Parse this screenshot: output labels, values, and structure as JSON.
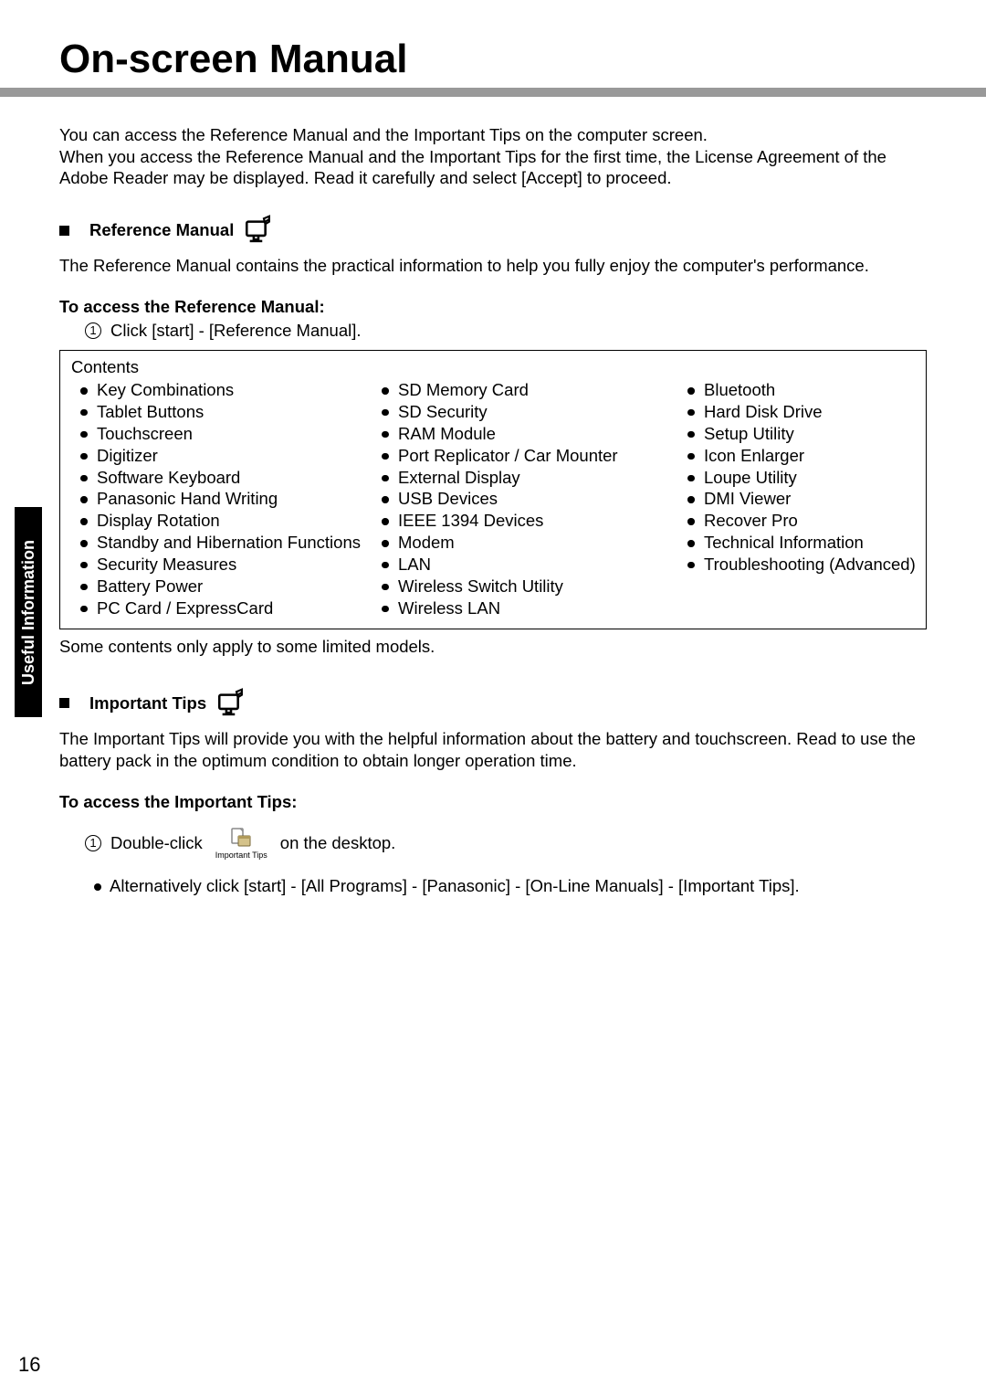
{
  "page": {
    "title": "On-screen Manual",
    "page_number": "16",
    "side_tab": "Useful Information"
  },
  "intro": {
    "line1": "You can access the Reference Manual and the Important Tips on the computer screen.",
    "line2": "When you access the Reference Manual and the Important Tips for the first time, the License Agreement of the Adobe Reader may be displayed. Read it carefully and select [Accept] to proceed."
  },
  "ref": {
    "heading": "Reference Manual",
    "desc": "The Reference Manual contains the practical information to help you fully enjoy the computer's performance.",
    "access_heading": "To access the Reference Manual:",
    "step_num": "1",
    "step_text": "Click [start] - [Reference Manual].",
    "contents_label": "Contents",
    "col1": [
      "Key Combinations",
      "Tablet Buttons",
      "Touchscreen",
      "Digitizer",
      "Software Keyboard",
      "Panasonic Hand Writing",
      "Display Rotation",
      "Standby and Hibernation Functions",
      "Security Measures",
      "Battery Power",
      "PC Card / ExpressCard"
    ],
    "col2": [
      "SD Memory Card",
      "SD Security",
      "RAM Module",
      "Port Replicator / Car Mounter",
      "External Display",
      "USB Devices",
      "IEEE 1394 Devices",
      "Modem",
      "LAN",
      "Wireless Switch Utility",
      "Wireless LAN"
    ],
    "col3": [
      "Bluetooth",
      "Hard Disk Drive",
      "Setup Utility",
      "Icon Enlarger",
      "Loupe Utility",
      "DMI Viewer",
      "Recover Pro",
      "Technical Information",
      "Troubleshooting (Advanced)"
    ],
    "note": "Some contents only apply to some limited models."
  },
  "tips": {
    "heading": "Important Tips",
    "desc": "The Important Tips will provide you with the helpful information about the battery and touchscreen. Read to use the battery pack in the optimum condition to obtain longer operation time.",
    "access_heading": "To access the Important Tips:",
    "step_num": "1",
    "step_pre": "Double-click",
    "icon_label": "Important Tips",
    "step_post": "on the desktop.",
    "alt_line": "Alternatively click [start] - [All Programs] - [Panasonic] - [On-Line Manuals] - [Important Tips]."
  },
  "colors": {
    "underline": "#999999",
    "text": "#000000",
    "bg": "#ffffff"
  }
}
